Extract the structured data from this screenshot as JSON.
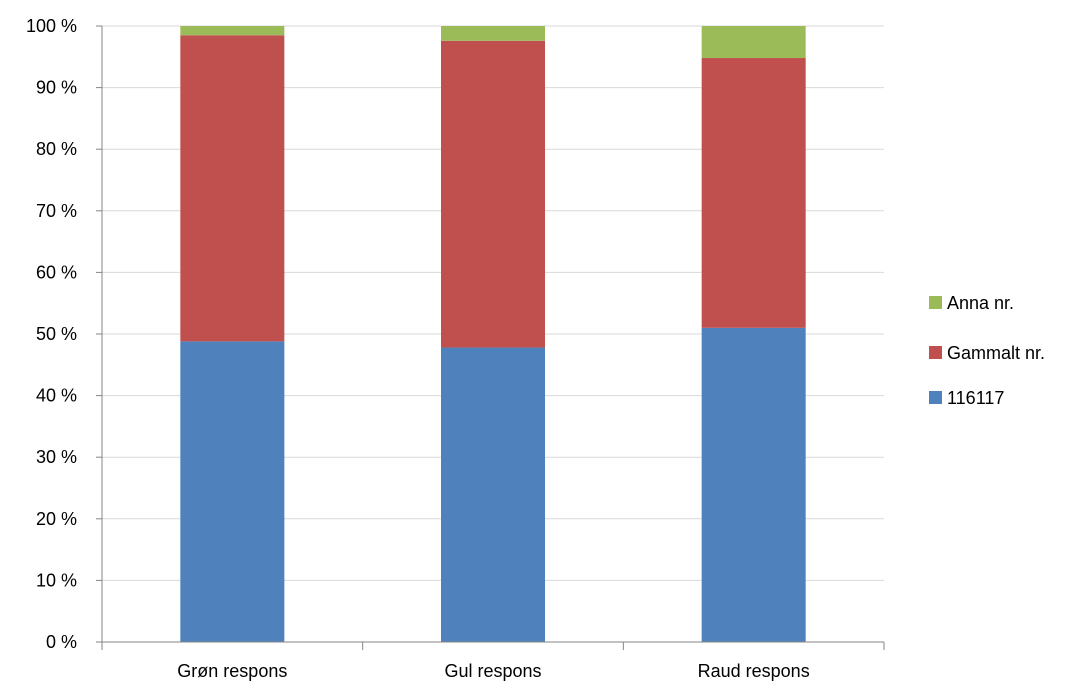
{
  "chart_data": {
    "type": "bar",
    "stacked": true,
    "percent_stacked": true,
    "categories": [
      "Grøn respons",
      "Gul respons",
      "Raud respons"
    ],
    "series": [
      {
        "name": "116117",
        "color": "#4F81BD",
        "values": [
          48.8,
          47.8,
          51.0
        ]
      },
      {
        "name": "Gammalt nr.",
        "color": "#C0504D",
        "values": [
          49.7,
          49.8,
          43.8
        ]
      },
      {
        "name": "Anna nr.",
        "color": "#9BBB59",
        "values": [
          1.5,
          2.4,
          5.2
        ]
      }
    ],
    "y_ticks": [
      "0 %",
      "10 %",
      "20 %",
      "30 %",
      "40 %",
      "50 %",
      "60 %",
      "70 %",
      "80 %",
      "90 %",
      "100 %"
    ],
    "ylim": [
      0,
      100
    ],
    "grid": true,
    "legend_position": "right",
    "legend_order": [
      "Anna nr.",
      "Gammalt nr.",
      "116117"
    ],
    "title": "",
    "xlabel": "",
    "ylabel": ""
  }
}
